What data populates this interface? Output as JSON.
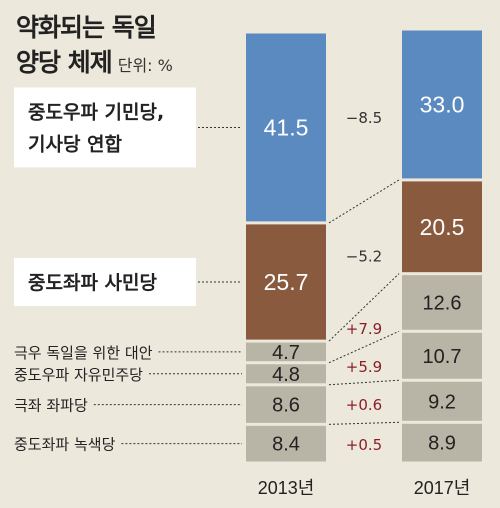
{
  "title_line1": "약화되는 독일",
  "title_line2": "양당 체제",
  "unit_label": "단위: %",
  "chart_data": {
    "type": "bar",
    "stacked": true,
    "categories": [
      "2013년",
      "2017년"
    ],
    "series": [
      {
        "name": "중도좌파 녹색당",
        "values": [
          8.4,
          8.9
        ],
        "change": "+0.5",
        "color": "#b8b5a6"
      },
      {
        "name": "극좌 좌파당",
        "values": [
          8.6,
          9.2
        ],
        "change": "+0.6",
        "color": "#b8b5a6"
      },
      {
        "name": "중도우파 자유민주당",
        "values": [
          4.8,
          10.7
        ],
        "change": "+5.9",
        "color": "#b8b5a6"
      },
      {
        "name": "극우 독일을 위한 대안",
        "values": [
          4.7,
          12.6
        ],
        "change": "+7.9",
        "color": "#b8b5a6"
      },
      {
        "name": "중도좌파 사민당",
        "values": [
          25.7,
          20.5
        ],
        "change": "−5.2",
        "color": "#8a5a3f"
      },
      {
        "name": "중도우파 기민당,\n기사당 연합",
        "values": [
          41.5,
          33.0
        ],
        "change": "−8.5",
        "color": "#5b8ac0"
      }
    ],
    "value_labels": [
      [
        "8.4",
        "8.9"
      ],
      [
        "8.6",
        "9.2"
      ],
      [
        "4.8",
        "10.7"
      ],
      [
        "4.7",
        "12.6"
      ],
      [
        "25.7",
        "20.5"
      ],
      [
        "41.5",
        "33.0"
      ]
    ],
    "boxed_legend": [
      4,
      5
    ],
    "change_colors": {
      "negative": "#333333",
      "positive": "#8b1e2a"
    }
  }
}
